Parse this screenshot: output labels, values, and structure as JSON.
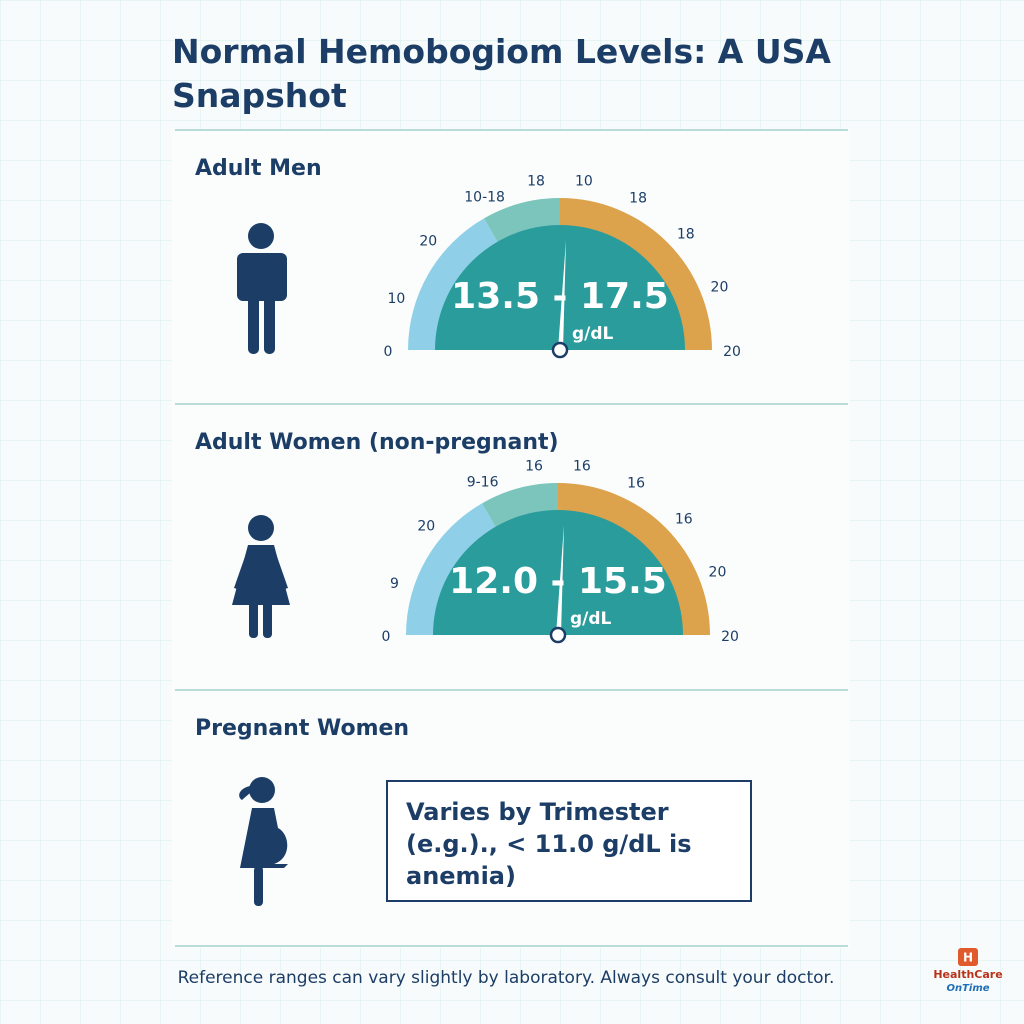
{
  "header": {
    "title": "Normal Hemobogiom Levels: A USA Snapshot"
  },
  "sections": [
    {
      "title": "Adult Men",
      "gauge": {
        "labels": [
          "0",
          "10",
          "20",
          "10-18",
          "18",
          "10",
          "18",
          "18",
          "20",
          "20"
        ],
        "range": "13.5 - 17.5",
        "unit": "g/dL"
      }
    },
    {
      "title": "Adult Women (non-pregnant)",
      "gauge": {
        "labels": [
          "0",
          "9",
          "20",
          "9-16",
          "16",
          "16",
          "16",
          "16",
          "20",
          "20"
        ],
        "range": "12.0 - 15.5",
        "unit": "g/dL"
      }
    }
  ],
  "pregnant": {
    "title": "Pregnant Women",
    "note": "Varies by Trimester (e.g.)., < 11.0 g/dL is anemia)"
  },
  "footer": {
    "text": "Reference ranges can vary slightly by laboratory. Always consult your doctor."
  },
  "logo": {
    "mark": "H",
    "name": "HealthCare",
    "tagline": "OnTime"
  }
}
